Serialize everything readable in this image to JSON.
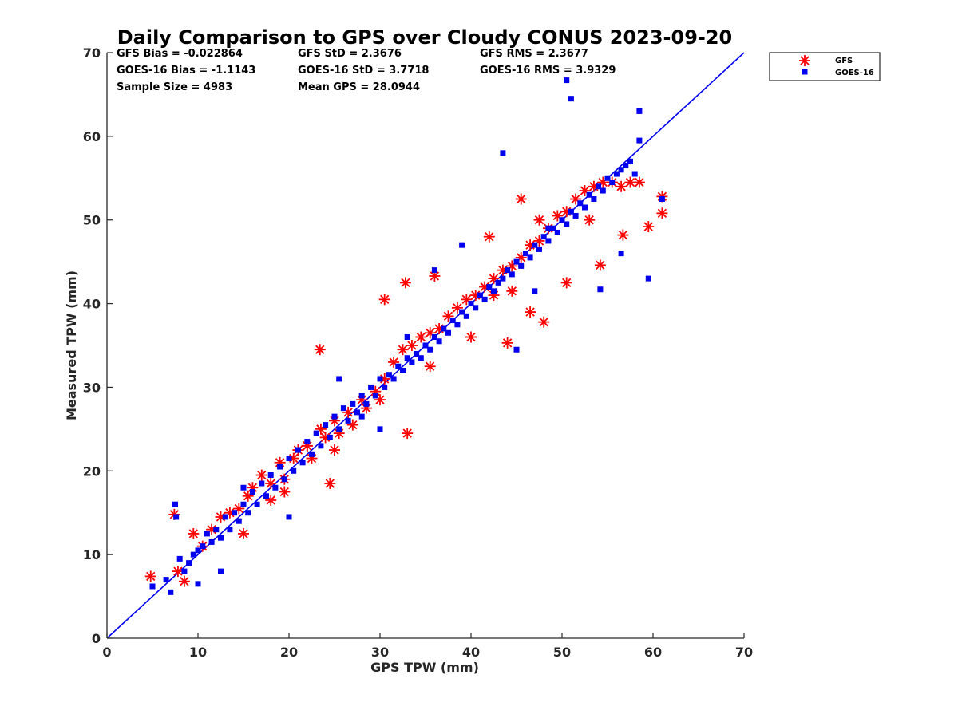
{
  "chart_data": {
    "type": "scatter",
    "title": "Daily Comparison to GPS over Cloudy CONUS 2023-09-20",
    "xlabel": "GPS TPW (mm)",
    "ylabel": "Measured TPW (mm)",
    "xlim": [
      0,
      70
    ],
    "ylim": [
      0,
      70
    ],
    "xticks": [
      "0",
      "10",
      "20",
      "30",
      "40",
      "50",
      "60",
      "70"
    ],
    "yticks": [
      "0",
      "10",
      "20",
      "30",
      "40",
      "50",
      "60",
      "70"
    ],
    "grid": false,
    "legend_position": "outside-top-right",
    "stats": [
      [
        "GFS Bias = -0.022864",
        "GFS StD = 2.3676",
        "GFS RMS = 2.3677"
      ],
      [
        "GOES-16 Bias = -1.1143",
        "GOES-16 StD = 3.7718",
        "GOES-16 RMS = 3.9329"
      ],
      [
        "Sample Size = 4983",
        "Mean GPS = 28.0944",
        ""
      ]
    ],
    "reference_line": {
      "x": [
        0,
        70
      ],
      "y": [
        0,
        70
      ],
      "color": "#0000ee"
    },
    "series": [
      {
        "name": "GFS",
        "marker": "asterisk",
        "color": "#ff0000",
        "x": [
          4.8,
          7.4,
          7.8,
          8.5,
          9.5,
          10.5,
          11.5,
          12.5,
          13.5,
          14.5,
          15.5,
          16.0,
          17.0,
          18.0,
          19.0,
          19.5,
          20.5,
          21.0,
          22.0,
          22.5,
          23.5,
          24.0,
          25.0,
          25.5,
          26.5,
          27.0,
          28.0,
          28.5,
          29.5,
          30.5,
          31.5,
          32.5,
          33.5,
          34.5,
          35.5,
          36.5,
          37.5,
          38.5,
          39.5,
          40.5,
          41.5,
          42.5,
          43.5,
          44.5,
          45.5,
          46.5,
          47.5,
          48.5,
          49.5,
          50.5,
          51.5,
          52.5,
          53.5,
          54.5,
          55.5,
          56.5,
          57.5,
          58.5,
          59.5,
          61.0,
          61.0,
          23.4,
          33.0,
          32.8,
          30.5,
          36.0,
          42.0,
          45.5,
          44.0,
          50.5,
          53.0,
          56.7,
          54.2,
          47.5,
          24.5,
          18.0,
          25.0,
          19.5,
          15.0,
          22.0,
          30.0,
          40.0,
          42.5,
          35.5,
          44.5,
          46.5,
          48.0
        ],
        "y": [
          7.4,
          14.8,
          8.0,
          6.8,
          12.5,
          11.0,
          13.0,
          14.5,
          15.0,
          15.5,
          17.0,
          18.0,
          19.5,
          18.5,
          21.0,
          19.0,
          21.5,
          22.5,
          23.0,
          21.5,
          25.0,
          24.0,
          26.0,
          24.5,
          27.0,
          25.5,
          28.5,
          27.5,
          29.5,
          31.0,
          33.0,
          34.5,
          35.0,
          36.0,
          36.5,
          37.0,
          38.5,
          39.5,
          40.5,
          41.0,
          42.0,
          43.0,
          44.0,
          44.5,
          45.5,
          47.0,
          47.5,
          49.0,
          50.5,
          51.0,
          52.5,
          53.5,
          54.0,
          54.5,
          54.5,
          54.0,
          54.5,
          54.5,
          49.2,
          52.8,
          50.8,
          34.5,
          24.5,
          42.5,
          40.5,
          43.3,
          48.0,
          52.5,
          35.3,
          42.5,
          50.0,
          48.2,
          44.6,
          50.0,
          18.5,
          16.5,
          22.5,
          17.5,
          12.5,
          23.0,
          28.5,
          36.0,
          41.0,
          32.5,
          41.5,
          39.0,
          37.8
        ]
      },
      {
        "name": "GOES-16",
        "marker": "square",
        "color": "#0000ee",
        "x": [
          5.0,
          6.5,
          7.0,
          7.5,
          7.6,
          8.0,
          8.5,
          9.0,
          9.5,
          10.0,
          10.5,
          11.0,
          11.5,
          12.0,
          12.5,
          13.0,
          13.5,
          14.0,
          14.5,
          15.0,
          15.5,
          16.0,
          16.5,
          17.0,
          17.5,
          18.0,
          18.5,
          19.0,
          19.5,
          20.0,
          20.5,
          21.0,
          21.5,
          22.0,
          22.5,
          23.0,
          23.5,
          24.0,
          24.5,
          25.0,
          25.5,
          26.0,
          26.5,
          27.0,
          27.5,
          28.0,
          28.5,
          29.0,
          29.5,
          30.0,
          30.5,
          31.0,
          31.5,
          32.0,
          32.5,
          33.0,
          33.5,
          34.0,
          34.5,
          35.0,
          35.5,
          36.0,
          36.5,
          37.0,
          37.5,
          38.0,
          38.5,
          39.0,
          39.5,
          40.0,
          40.5,
          41.0,
          41.5,
          42.0,
          42.5,
          43.0,
          43.5,
          44.0,
          44.5,
          45.0,
          45.5,
          46.0,
          46.5,
          47.0,
          47.5,
          48.0,
          48.5,
          49.0,
          49.5,
          50.0,
          50.5,
          51.0,
          51.5,
          52.0,
          52.5,
          53.0,
          53.5,
          54.0,
          54.5,
          55.0,
          55.5,
          56.0,
          56.5,
          57.0,
          57.5,
          58.0,
          58.5,
          59.5,
          61.0,
          43.5,
          50.5,
          51.0,
          58.5,
          54.2,
          56.5,
          48.5,
          39.0,
          36.0,
          28.0,
          25.5,
          20.0,
          15.0,
          12.5,
          10.0,
          30.0,
          33.0,
          45.0,
          47.0
        ],
        "y": [
          6.2,
          7.0,
          5.5,
          16.0,
          14.5,
          9.5,
          8.0,
          9.0,
          10.0,
          10.5,
          11.0,
          12.5,
          11.5,
          13.0,
          12.0,
          14.5,
          13.0,
          15.0,
          14.0,
          16.0,
          15.0,
          17.5,
          16.0,
          18.5,
          17.0,
          19.5,
          18.0,
          20.5,
          19.0,
          21.5,
          20.0,
          22.5,
          21.0,
          23.5,
          22.0,
          24.5,
          23.0,
          25.5,
          24.0,
          26.5,
          25.0,
          27.5,
          26.0,
          28.0,
          27.0,
          29.0,
          28.0,
          30.0,
          29.0,
          31.0,
          30.0,
          31.5,
          31.0,
          32.5,
          32.0,
          33.5,
          33.0,
          34.0,
          33.5,
          35.0,
          34.5,
          36.0,
          35.5,
          37.0,
          36.5,
          38.0,
          37.5,
          39.0,
          38.5,
          40.0,
          39.5,
          41.0,
          40.5,
          42.0,
          41.5,
          42.5,
          43.0,
          44.0,
          43.5,
          45.0,
          44.5,
          46.0,
          45.5,
          47.0,
          46.5,
          48.0,
          47.5,
          49.0,
          48.5,
          50.0,
          49.5,
          51.0,
          50.5,
          52.0,
          51.5,
          53.0,
          52.5,
          54.0,
          53.5,
          55.0,
          54.5,
          55.5,
          56.0,
          56.5,
          57.0,
          55.5,
          63.0,
          43.0,
          52.5,
          58.0,
          66.7,
          64.5,
          59.5,
          41.7,
          46.0,
          49.0,
          47.0,
          44.0,
          26.5,
          31.0,
          14.5,
          18.0,
          8.0,
          6.5,
          25.0,
          36.0,
          34.5,
          41.5
        ]
      }
    ]
  }
}
